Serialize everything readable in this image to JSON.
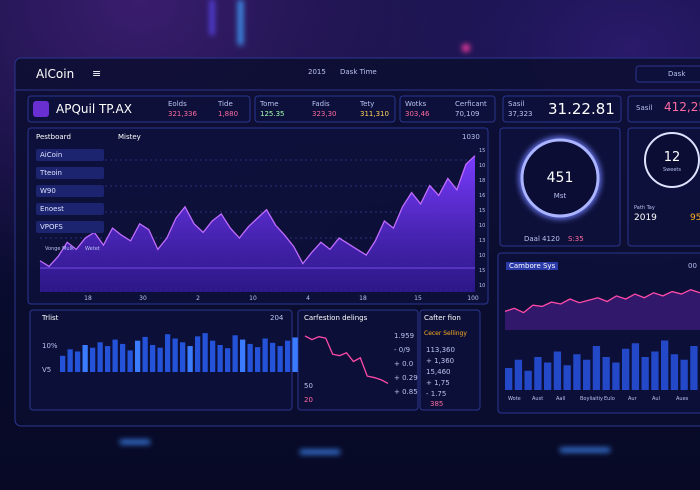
{
  "header": {
    "brand": "AlCoin",
    "year": "2015",
    "title": "Dask Time",
    "search": "Dask"
  },
  "ticker": {
    "name": "APQuil TP.AX",
    "stats": [
      {
        "label": "Eolds",
        "value": "321,336"
      },
      {
        "label": "Tide",
        "value": "1,880"
      },
      {
        "label": "Tome",
        "value": "125.35"
      },
      {
        "label": "Fadis",
        "value": "323,30"
      },
      {
        "label": "Tety",
        "value": "311,310"
      },
      {
        "label": "Wotks",
        "value": "303,46"
      },
      {
        "label": "Cerficant",
        "value": "70,109"
      }
    ],
    "price_label": "Sasil",
    "price_small": "37,323",
    "price": "31.22.81",
    "side_label": "Sasil",
    "side_value": "412,25"
  },
  "sidebar": {
    "title": "Pestboard",
    "items": [
      "AiCoin",
      "Tteoin",
      "W90",
      "Enoest",
      "VPOFS"
    ]
  },
  "main_chart": {
    "title": "Mistey",
    "badge": "1030",
    "legend": [
      "Vonge Mulk",
      "Wetet"
    ],
    "ylim": [
      0,
      100
    ],
    "values": [
      22,
      18,
      25,
      35,
      30,
      38,
      42,
      33,
      45,
      40,
      36,
      48,
      44,
      30,
      38,
      52,
      60,
      48,
      42,
      50,
      55,
      45,
      38,
      46,
      52,
      58,
      47,
      40,
      32,
      20,
      28,
      35,
      30,
      38,
      34,
      30,
      26,
      36,
      50,
      45,
      60,
      70,
      62,
      75,
      68,
      80,
      72,
      90,
      96
    ],
    "x_labels": [
      "18",
      "30",
      "2",
      "10",
      "4",
      "18",
      "15",
      "100"
    ],
    "y_labels": [
      "15",
      "10",
      "18",
      "16",
      "15",
      "10",
      "13",
      "10",
      "15",
      "10"
    ]
  },
  "gauge": {
    "value": "451",
    "label": "Mst",
    "footer": [
      "Daal",
      "4120",
      "S:35"
    ]
  },
  "gauge2": {
    "value": "12",
    "label": "Sweets",
    "caption": "Path Tay",
    "year": "2019",
    "side": "95"
  },
  "trlist": {
    "title": "Trlist",
    "badge": "204",
    "y_labels": [
      "10%",
      "V5"
    ],
    "ylim": [
      0,
      100
    ],
    "values": [
      30,
      42,
      38,
      50,
      45,
      55,
      48,
      60,
      52,
      40,
      58,
      65,
      50,
      45,
      70,
      62,
      55,
      48,
      66,
      72,
      58,
      50,
      44,
      68,
      60,
      52,
      46,
      62,
      54,
      48,
      58,
      64
    ]
  },
  "carfestion": {
    "title": "Carfestion delings",
    "ylim": [
      0,
      100
    ],
    "values": [
      85,
      80,
      84,
      82,
      60,
      58,
      62,
      50,
      55,
      30,
      28,
      25,
      20
    ],
    "y_labels": [
      "1.959",
      "- 0/9",
      "+ 0.0",
      "+ 0.29",
      "+ 0.85"
    ],
    "x_labels": [
      "50",
      "20"
    ]
  },
  "cafter": {
    "title": "Cafter fion",
    "subtitle": "Cecer Sellingy",
    "rows": [
      "113,360",
      "+ 1,360",
      "15,460",
      "+ 1,75",
      "- 1.75"
    ],
    "footer": "385"
  },
  "cambore": {
    "title": "Cambore Sys",
    "badge": "00",
    "ylim": [
      0,
      100
    ],
    "line": [
      30,
      35,
      28,
      40,
      38,
      45,
      42,
      50,
      44,
      48,
      52,
      46,
      55,
      50,
      58,
      52,
      60,
      55,
      62,
      58,
      65,
      60
    ],
    "bars": [
      40,
      55,
      35,
      60,
      50,
      70,
      45,
      65,
      55,
      80,
      60,
      50,
      75,
      85,
      60,
      70,
      90,
      65,
      55,
      80
    ],
    "x_labels": [
      "Wote",
      "Aust",
      "Aall",
      "Boyliaitiy",
      "Eulo",
      "Aur",
      "Aul",
      "Aues"
    ]
  }
}
